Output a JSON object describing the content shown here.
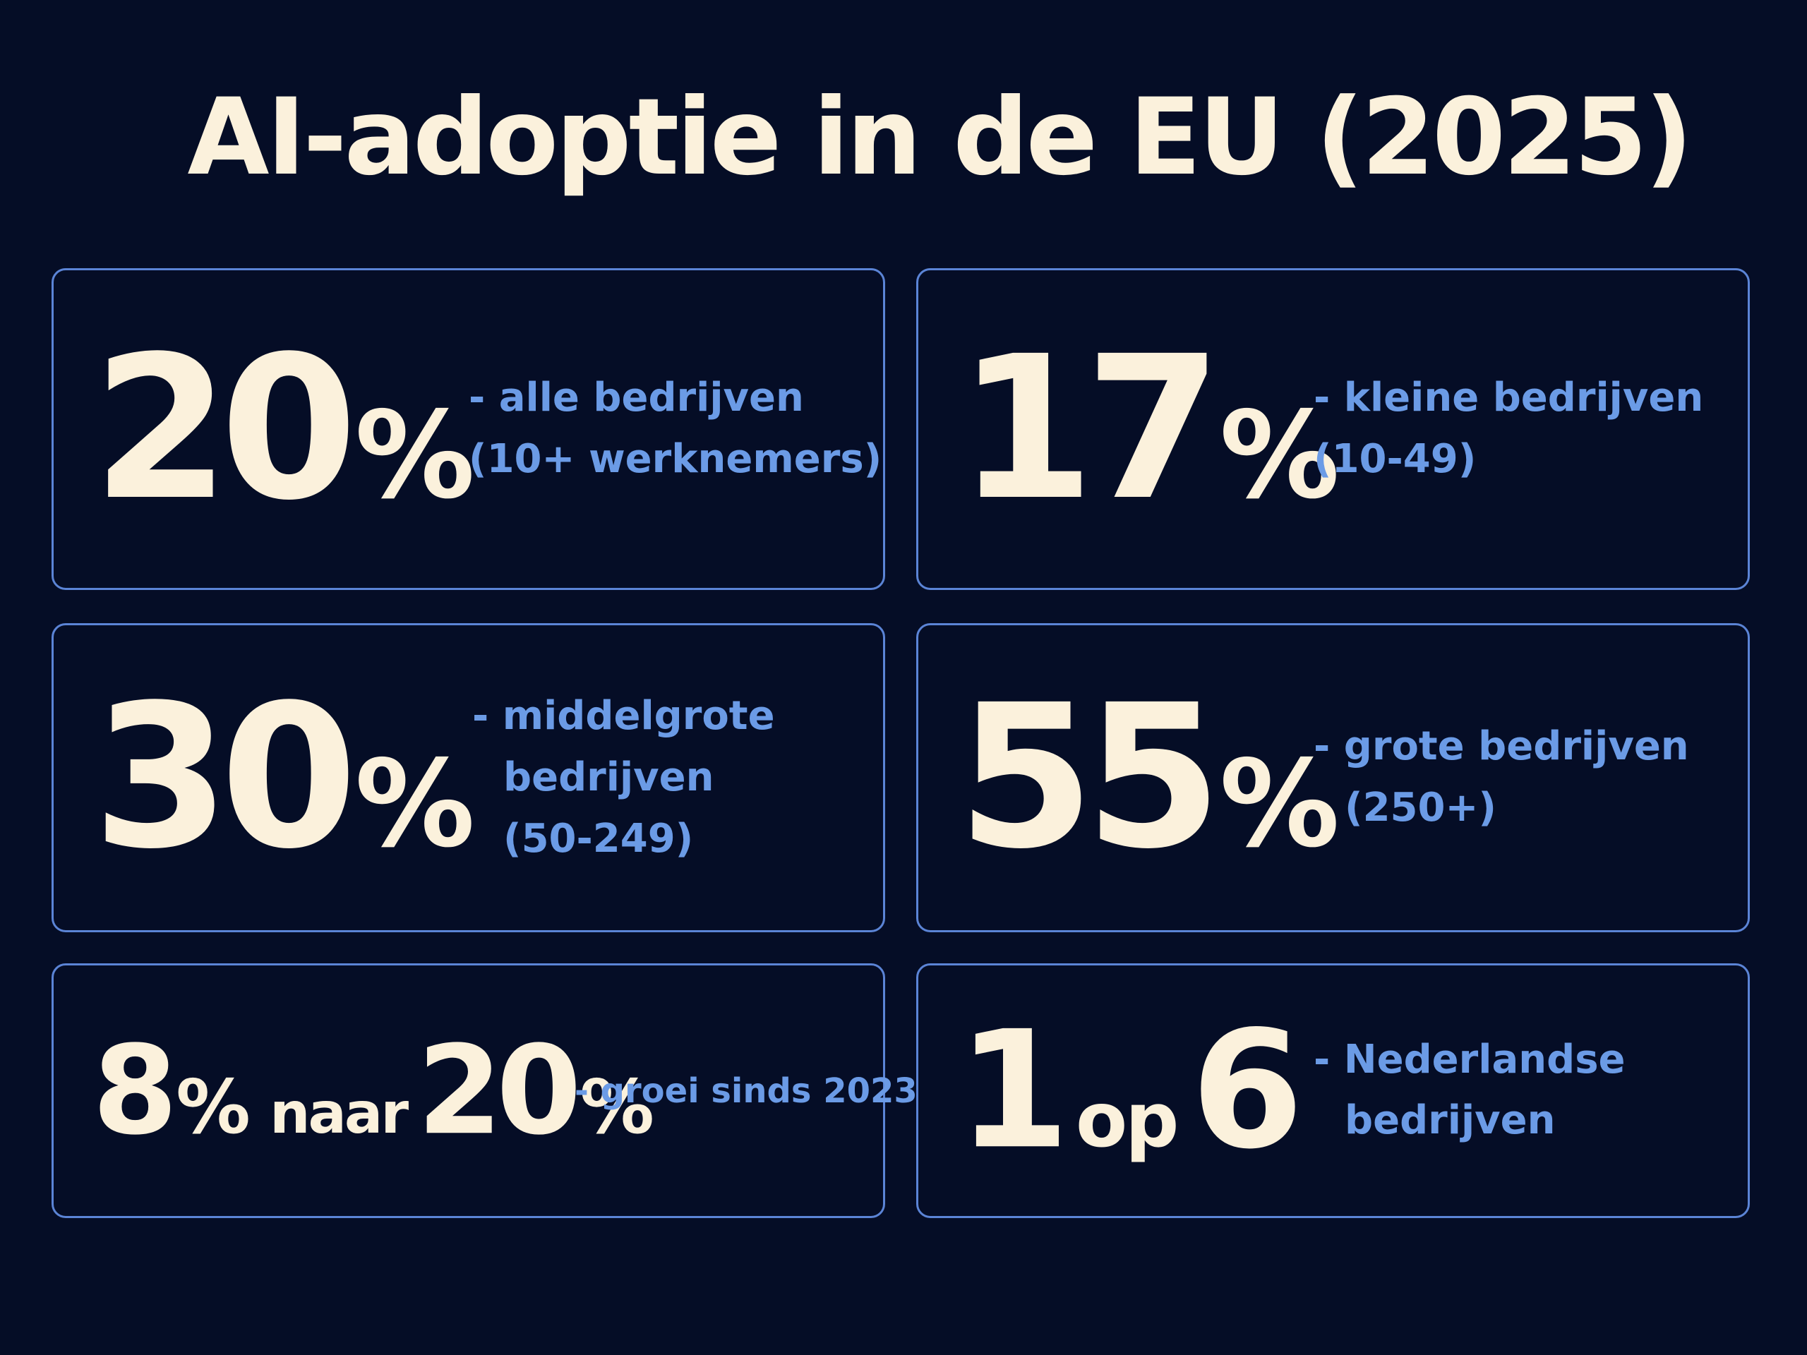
{
  "title": "AI-adoptie in de EU (2025)",
  "cards": [
    {
      "stat": [
        "20",
        "%"
      ],
      "description": [
        "- alle bedrijven",
        "(10+ werknemers)"
      ]
    },
    {
      "stat": [
        "17",
        "%"
      ],
      "description": [
        "- kleine bedrijven",
        "(10-49)"
      ]
    },
    {
      "stat": [
        "30",
        "%"
      ],
      "description": [
        "- middelgrote",
        "bedrijven",
        "(50-249)"
      ]
    },
    {
      "stat": [
        "55",
        "%"
      ],
      "description": [
        "- grote bedrijven",
        "(250+)"
      ]
    },
    {
      "stat": [
        "8",
        "%",
        "naar",
        "20",
        "%"
      ],
      "description": [
        "- groei sinds 2023"
      ]
    },
    {
      "stat": [
        "1",
        "op",
        "6"
      ],
      "description": [
        "- Nederlandse",
        "bedrijven"
      ]
    }
  ]
}
